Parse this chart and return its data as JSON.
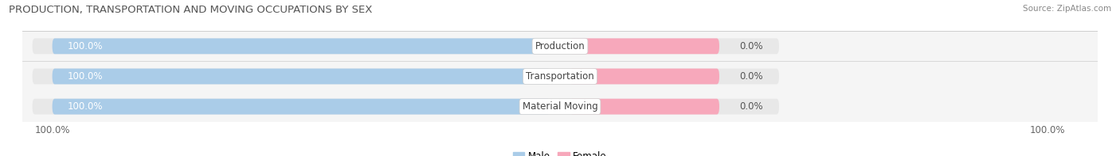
{
  "title": "PRODUCTION, TRANSPORTATION AND MOVING OCCUPATIONS BY SEX",
  "source": "Source: ZipAtlas.com",
  "categories": [
    "Production",
    "Transportation",
    "Material Moving"
  ],
  "male_values": [
    100.0,
    100.0,
    100.0
  ],
  "female_values": [
    0.0,
    0.0,
    0.0
  ],
  "female_display": [
    15.0,
    15.0,
    15.0
  ],
  "male_color": "#aacce8",
  "female_color": "#f7a8bb",
  "bar_bg_color": "#e8e8e8",
  "background_color": "#ffffff",
  "row_bg_color": "#f5f5f5",
  "title_fontsize": 9.5,
  "source_fontsize": 7.5,
  "label_fontsize": 8.5,
  "cat_fontsize": 8.5,
  "tick_fontsize": 8.5,
  "x_left_label": "100.0%",
  "x_right_label": "100.0%",
  "male_label": "100.0%",
  "female_label": "0.0%"
}
